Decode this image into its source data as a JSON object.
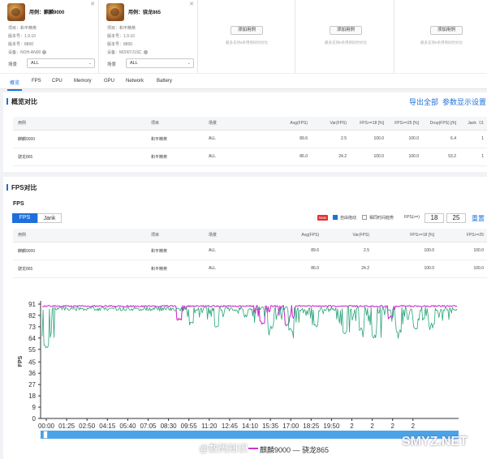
{
  "devices": [
    {
      "name": "用例：麒麟9000",
      "project_label": "项目：",
      "project": "和平精英",
      "version_label": "版本号：",
      "version": "1.9.10",
      "build_label": "版本号：",
      "build": "8800",
      "device_label": "设备：",
      "device": "NOH-AN00"
    },
    {
      "name": "用例：骁龙865",
      "project_label": "项目：",
      "project": "和平精英",
      "version_label": "版本号：",
      "version": "1.9.10",
      "build_label": "版本号：",
      "build": "8800",
      "device_label": "设备：",
      "device": "M2007J1SC"
    }
  ],
  "scene_label": "场景",
  "scene_value": "ALL",
  "add_button_label": "添加用例",
  "add_hint": "最多支持5条用例同时对比",
  "tabs": [
    "概览",
    "FPS",
    "CPU",
    "Memory",
    "GPU",
    "Network",
    "Battery"
  ],
  "overview": {
    "title": "概览对比",
    "export_label": "导出全部",
    "param_label": "参数显示设置",
    "headers": [
      "用例",
      "项目",
      "场景",
      "Avg(FPS)",
      "Var(FPS)",
      "FPS>=18 [%]",
      "FPS>=25 [%]",
      "Drop(FPS) [/h]",
      "Jank（/1"
    ],
    "rows": [
      [
        "麒麟9000",
        "和平精英",
        "ALL",
        "89.6",
        "2.5",
        "100.0",
        "100.0",
        "6.4",
        "1"
      ],
      [
        "骁龙865",
        "和平精英",
        "ALL",
        "86.0",
        "24.2",
        "100.0",
        "100.0",
        "53.2",
        "1"
      ]
    ]
  },
  "fps_section": {
    "title": "FPS对比",
    "subtitle": "FPS",
    "tab_fps": "FPS",
    "tab_jank": "Jank",
    "new_badge": "New",
    "auto_zoom_label": "自由拖动",
    "time_align_label": "相同时间趋势",
    "fps_threshold_label": "FPS(>=)",
    "threshold_1": "18",
    "threshold_2": "25",
    "reset_label": "重置",
    "headers": [
      "用例",
      "项目",
      "场景",
      "Avg(FPS)",
      "Var(FPS)",
      "FPS>=18 [%]",
      "FPS>=25"
    ],
    "rows": [
      [
        "麒麟9000",
        "和平精英",
        "ALL",
        "89.6",
        "2.5",
        "100.0",
        "100.0"
      ],
      [
        "骁龙865",
        "和平精英",
        "ALL",
        "86.0",
        "24.2",
        "100.0",
        "100.0"
      ]
    ]
  },
  "chart_data": {
    "type": "line",
    "ylabel": "FPS",
    "yticks": [
      0,
      9,
      18,
      27,
      36,
      45,
      55,
      64,
      73,
      82,
      91
    ],
    "ylim": [
      0,
      91
    ],
    "xticks": [
      "00:00",
      "01:25",
      "02:50",
      "04:15",
      "05:40",
      "07:05",
      "08:30",
      "09:55",
      "11:20",
      "12:45",
      "14:10",
      "15:35",
      "17:00",
      "18:25",
      "19:50",
      "2",
      "2",
      "2",
      "2"
    ],
    "grid": false,
    "series": [
      {
        "name": "麒麟9000",
        "color": "#cc33cc",
        "baseline": 90,
        "noise": 1.2,
        "dips": [
          [
            0.33,
            77
          ],
          [
            0.53,
            75
          ],
          [
            0.59,
            73
          ],
          [
            0.84,
            79
          ]
        ]
      },
      {
        "name": "骁龙865",
        "color": "#2aa37a",
        "baseline": 89,
        "noise": 3.5,
        "dips": [
          [
            0.01,
            56
          ],
          [
            0.36,
            74
          ],
          [
            0.42,
            72
          ],
          [
            0.49,
            80
          ],
          [
            0.55,
            71
          ],
          [
            0.6,
            69
          ],
          [
            0.66,
            73
          ],
          [
            0.73,
            67
          ],
          [
            0.77,
            70
          ],
          [
            0.8,
            64
          ],
          [
            0.86,
            68
          ],
          [
            0.9,
            71
          ],
          [
            0.94,
            73
          ]
        ]
      }
    ],
    "legend": "麒麟9000 — 骁龙865",
    "legend_placement": "bottom"
  },
  "colors": {
    "accent": "#1e6fd9",
    "new_badge": "#e03333"
  },
  "watermark": "SMYZ.NET",
  "watermark_cn": "@数码知识"
}
